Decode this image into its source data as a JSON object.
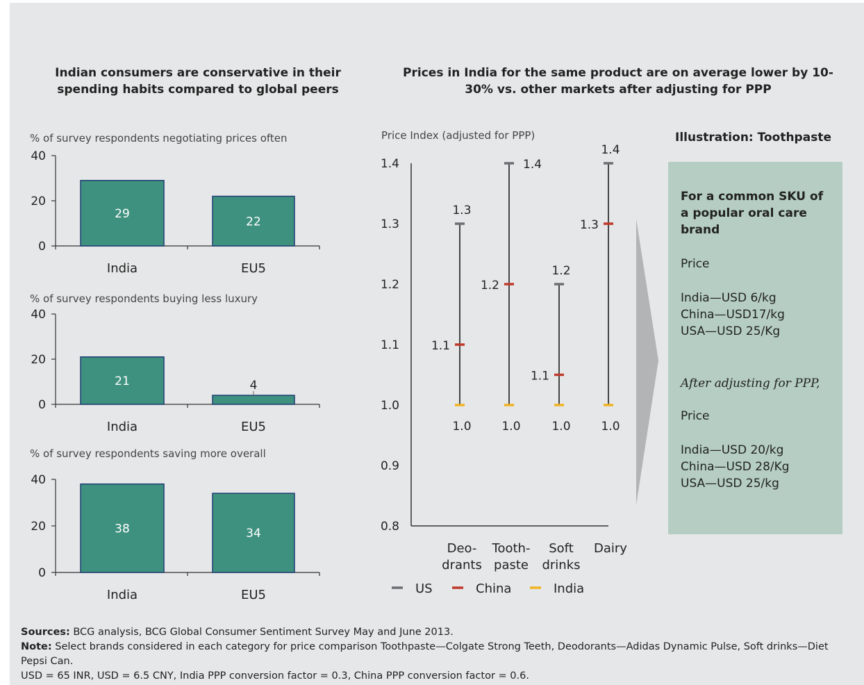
{
  "left_title": "Indian consumers are conservative in their spending habits compared to global peers",
  "right_title": "Prices in India for the same product are on average lower by 10-30% vs. other markets after adjusting for PPP",
  "chart_data": [
    {
      "type": "bar",
      "title": "% of survey respondents negotiating prices often",
      "categories": [
        "India",
        "EU5"
      ],
      "values": [
        29,
        22
      ],
      "yticks": [
        "0",
        "20",
        "40"
      ],
      "ylim": [
        0,
        40
      ],
      "color": "#3f917f"
    },
    {
      "type": "bar",
      "title": "% of survey respondents buying less luxury",
      "categories": [
        "India",
        "EU5"
      ],
      "values": [
        21,
        4
      ],
      "yticks": [
        "0",
        "20",
        "40"
      ],
      "ylim": [
        0,
        40
      ],
      "color": "#3f917f"
    },
    {
      "type": "bar",
      "title": "% of survey respondents saving more overall",
      "categories": [
        "India",
        "EU5"
      ],
      "values": [
        38,
        34
      ],
      "yticks": [
        "0",
        "20",
        "40"
      ],
      "ylim": [
        0,
        40
      ],
      "color": "#3f917f"
    },
    {
      "type": "range",
      "ylabel": "Price Index (adjusted for PPP)",
      "ylim": [
        0.8,
        1.4
      ],
      "yticks": [
        "0.8",
        "0.9",
        "1.0",
        "1.1",
        "1.2",
        "1.3",
        "1.4"
      ],
      "categories": [
        {
          "lines": [
            "Deo-",
            "drants"
          ]
        },
        {
          "lines": [
            "Tooth-",
            "paste"
          ]
        },
        {
          "lines": [
            "Soft",
            "drinks"
          ]
        },
        {
          "lines": [
            "Dairy"
          ]
        }
      ],
      "series": [
        {
          "name": "US",
          "color": "#6d6e71",
          "values": [
            1.3,
            1.4,
            1.2,
            1.4
          ],
          "labels": [
            "1.3",
            "1.4",
            "1.2",
            "1.4"
          ]
        },
        {
          "name": "China",
          "color": "#c0392b",
          "values": [
            1.1,
            1.2,
            1.05,
            1.3
          ],
          "labels": [
            "1.1",
            "1.2",
            "1.1",
            "1.3"
          ]
        },
        {
          "name": "India",
          "color": "#f0b323",
          "values": [
            1.0,
            1.0,
            1.0,
            1.0
          ],
          "labels": [
            "1.0",
            "1.0",
            "1.0",
            "1.0"
          ]
        }
      ]
    }
  ],
  "illustration": {
    "title": "Illustration: Toothpaste",
    "heading": "For a common SKU of a popular oral care brand",
    "price_label_1": "Price",
    "before": [
      "India—USD 6/kg",
      "China—USD17/kg",
      "USA—USD 25/Kg"
    ],
    "after_note": "After adjusting for PPP,",
    "price_label_2": "Price",
    "after": [
      "India—USD 20/kg",
      "China—USD 28/Kg",
      "USA—USD 25/kg"
    ]
  },
  "footer": {
    "sources_label": "Sources:",
    "sources_text": " BCG analysis, BCG Global Consumer Sentiment Survey May and June 2013.",
    "note_label": "Note:",
    "note_text": " Select brands considered in each category for price comparison Toothpaste—Colgate Strong Teeth, Deodorants—Adidas Dynamic Pulse, Soft drinks—Diet Pepsi Can.",
    "conversion_text": "USD = 65 INR, USD = 6.5 CNY, India PPP conversion factor = 0.3, China PPP conversion factor = 0.6."
  }
}
